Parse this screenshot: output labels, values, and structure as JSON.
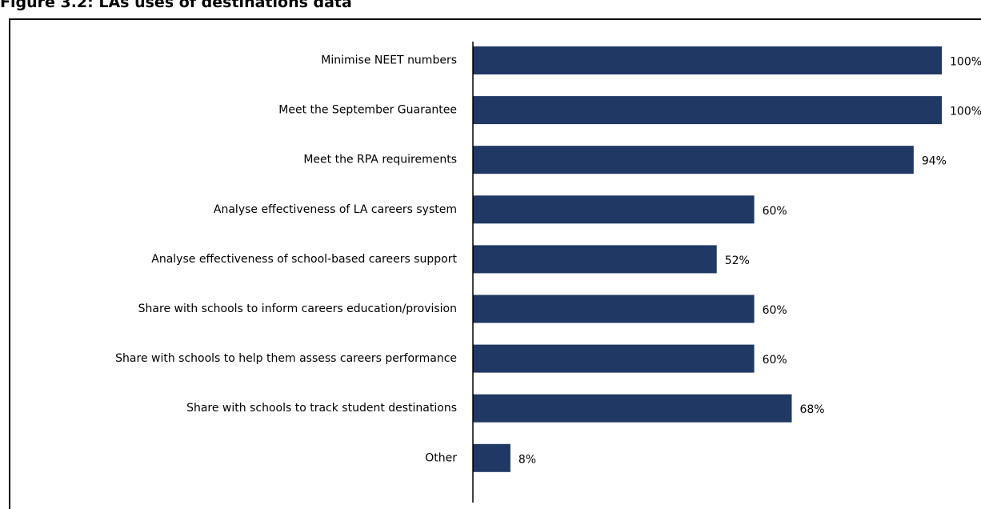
{
  "figure_title": "Figure 3.2: LAs uses of destinations data",
  "colors": {
    "bar": "#203864",
    "axis": "#000000",
    "text": "#000000",
    "frame": "#000000"
  },
  "chart_data": {
    "type": "bar",
    "orientation": "horizontal",
    "title": "",
    "xlabel": "",
    "ylabel": "",
    "xlim": [
      0,
      100
    ],
    "grid": false,
    "legend": "none",
    "value_suffix": "%",
    "categories": [
      "Minimise NEET numbers",
      "Meet the September Guarantee",
      "Meet the RPA requirements",
      "Analyse effectiveness of LA careers system",
      "Analyse effectiveness of school-based careers support",
      "Share with schools to inform careers education/provision",
      "Share with schools to help them assess careers performance",
      "Share with schools to track student destinations",
      "Other"
    ],
    "values": [
      100,
      100,
      94,
      60,
      52,
      60,
      60,
      68,
      8
    ],
    "value_labels": [
      "100%",
      "100%",
      "94%",
      "60%",
      "52%",
      "60%",
      "60%",
      "68%",
      "8%"
    ]
  }
}
